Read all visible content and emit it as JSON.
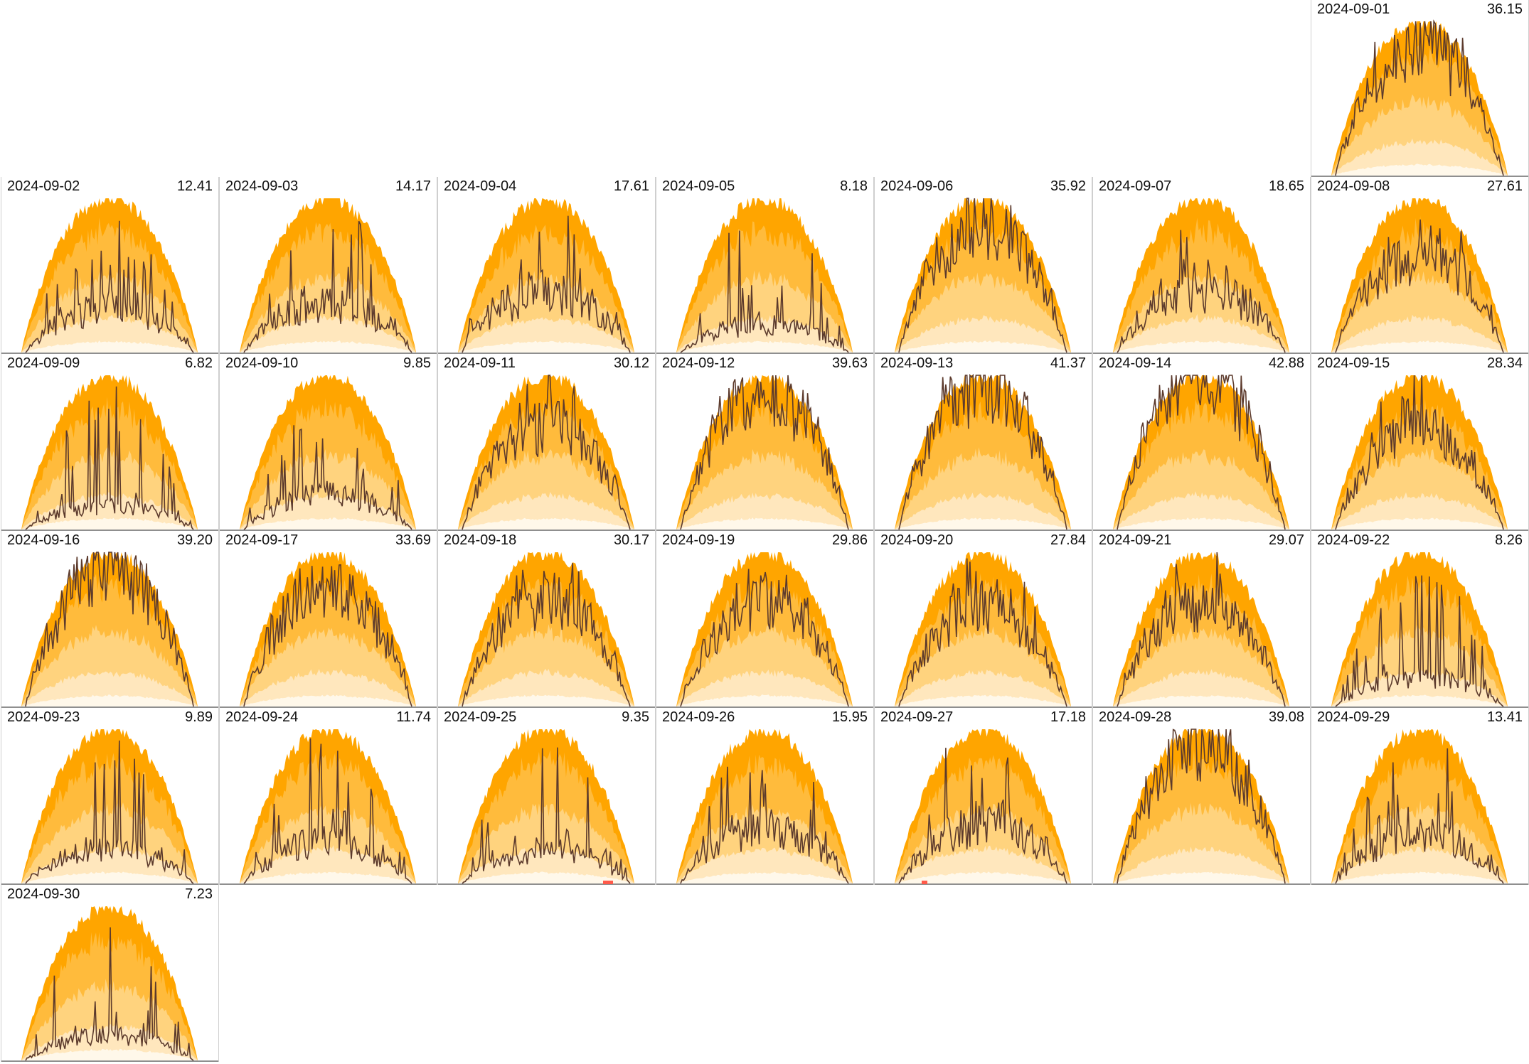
{
  "chart_data": {
    "type": "area",
    "colors": {
      "band_1": "#ffa500",
      "band_2": "#ffbb3c",
      "band_3": "#ffd37e",
      "band_4": "#ffe7bd",
      "band_5": "#fff8ea",
      "actual_line": "#5c3a2c",
      "marker": "#ff5a4a",
      "baseline": "#6a6a6a",
      "grid": "#cfcfcf"
    },
    "weekday_offset_first_day": 6,
    "days": [
      {
        "date": "2024-09-01",
        "total": "36.15",
        "value": 36.15
      },
      {
        "date": "2024-09-02",
        "total": "12.41",
        "value": 12.41
      },
      {
        "date": "2024-09-03",
        "total": "14.17",
        "value": 14.17
      },
      {
        "date": "2024-09-04",
        "total": "17.61",
        "value": 17.61
      },
      {
        "date": "2024-09-05",
        "total": "8.18",
        "value": 8.18
      },
      {
        "date": "2024-09-06",
        "total": "35.92",
        "value": 35.92
      },
      {
        "date": "2024-09-07",
        "total": "18.65",
        "value": 18.65
      },
      {
        "date": "2024-09-08",
        "total": "27.61",
        "value": 27.61
      },
      {
        "date": "2024-09-09",
        "total": "6.82",
        "value": 6.82
      },
      {
        "date": "2024-09-10",
        "total": "9.85",
        "value": 9.85
      },
      {
        "date": "2024-09-11",
        "total": "30.12",
        "value": 30.12
      },
      {
        "date": "2024-09-12",
        "total": "39.63",
        "value": 39.63
      },
      {
        "date": "2024-09-13",
        "total": "41.37",
        "value": 41.37
      },
      {
        "date": "2024-09-14",
        "total": "42.88",
        "value": 42.88
      },
      {
        "date": "2024-09-15",
        "total": "28.34",
        "value": 28.34
      },
      {
        "date": "2024-09-16",
        "total": "39.20",
        "value": 39.2
      },
      {
        "date": "2024-09-17",
        "total": "33.69",
        "value": 33.69
      },
      {
        "date": "2024-09-18",
        "total": "30.17",
        "value": 30.17
      },
      {
        "date": "2024-09-19",
        "total": "29.86",
        "value": 29.86
      },
      {
        "date": "2024-09-20",
        "total": "27.84",
        "value": 27.84
      },
      {
        "date": "2024-09-21",
        "total": "29.07",
        "value": 29.07
      },
      {
        "date": "2024-09-22",
        "total": "8.26",
        "value": 8.26
      },
      {
        "date": "2024-09-23",
        "total": "9.89",
        "value": 9.89
      },
      {
        "date": "2024-09-24",
        "total": "11.74",
        "value": 11.74
      },
      {
        "date": "2024-09-25",
        "total": "9.35",
        "value": 9.35
      },
      {
        "date": "2024-09-26",
        "total": "15.95",
        "value": 15.95
      },
      {
        "date": "2024-09-27",
        "total": "17.18",
        "value": 17.18
      },
      {
        "date": "2024-09-28",
        "total": "39.08",
        "value": 39.08
      },
      {
        "date": "2024-09-29",
        "total": "13.41",
        "value": 13.41
      },
      {
        "date": "2024-09-30",
        "total": "7.23",
        "value": 7.23
      }
    ]
  }
}
